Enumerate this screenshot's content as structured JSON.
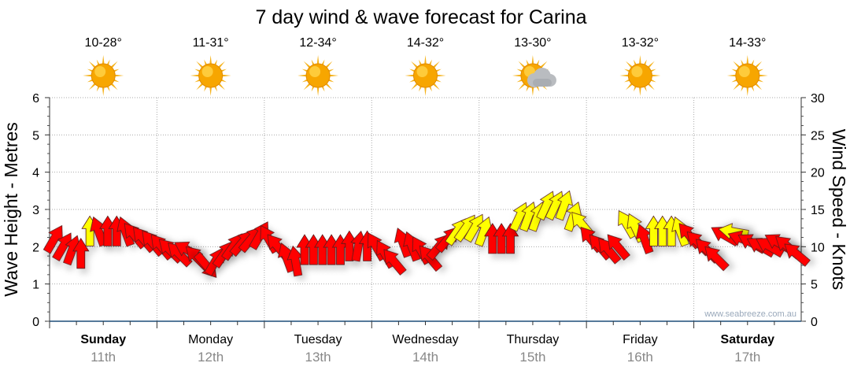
{
  "chart_data": {
    "type": "wind-arrow",
    "title": "7 day wind & wave forecast for Carina",
    "ylabel_left": "Wave Height - Metres",
    "ylabel_right": "Wind Speed - Knots",
    "ylim_left": [
      0,
      6
    ],
    "ylim_right": [
      0,
      30
    ],
    "yticks_left": [
      "0",
      "1",
      "2",
      "3",
      "4",
      "5",
      "6"
    ],
    "yticks_right": [
      "0",
      "5",
      "10",
      "15",
      "20",
      "25",
      "30"
    ],
    "grid": true,
    "watermark": "www.seabreeze.com.au",
    "days": [
      {
        "name": "Sunday",
        "date": "11th",
        "bold": true,
        "temp": "10-28°",
        "weather": "sunny"
      },
      {
        "name": "Monday",
        "date": "12th",
        "bold": false,
        "temp": "11-31°",
        "weather": "sunny"
      },
      {
        "name": "Tuesday",
        "date": "13th",
        "bold": false,
        "temp": "12-34°",
        "weather": "sunny"
      },
      {
        "name": "Wednesday",
        "date": "14th",
        "bold": false,
        "temp": "14-32°",
        "weather": "sunny"
      },
      {
        "name": "Thursday",
        "date": "15th",
        "bold": false,
        "temp": "13-30°",
        "weather": "partly-cloudy"
      },
      {
        "name": "Friday",
        "date": "16th",
        "bold": false,
        "temp": "13-32°",
        "weather": "sunny"
      },
      {
        "name": "Saturday",
        "date": "17th",
        "bold": true,
        "temp": "14-33°",
        "weather": "sunny"
      }
    ],
    "wind_units": "knots",
    "wind_points_per_day": 12,
    "wind": [
      [
        11,
        30,
        "r"
      ],
      [
        10,
        30,
        "r"
      ],
      [
        9.5,
        20,
        "r"
      ],
      [
        9,
        0,
        "r"
      ],
      [
        12,
        0,
        "y"
      ],
      [
        12,
        -20,
        "r"
      ],
      [
        12,
        0,
        "r"
      ],
      [
        12,
        0,
        "r"
      ],
      [
        12,
        -20,
        "r"
      ],
      [
        11.5,
        -40,
        "r"
      ],
      [
        11,
        -40,
        "r"
      ],
      [
        10.5,
        -40,
        "r"
      ],
      [
        10,
        -40,
        "r"
      ],
      [
        9.5,
        -45,
        "r"
      ],
      [
        9,
        -45,
        "r"
      ],
      [
        9.5,
        -60,
        "r"
      ],
      [
        8.5,
        -45,
        "r"
      ],
      [
        7.5,
        140,
        "r"
      ],
      [
        8,
        30,
        "r"
      ],
      [
        9,
        35,
        "r"
      ],
      [
        10,
        35,
        "r"
      ],
      [
        10.5,
        40,
        "r"
      ],
      [
        11,
        40,
        "r"
      ],
      [
        11.5,
        30,
        "r"
      ],
      [
        11,
        -30,
        "r"
      ],
      [
        10,
        -40,
        "r"
      ],
      [
        8.5,
        -20,
        "r"
      ],
      [
        8,
        -10,
        "r"
      ],
      [
        9.5,
        0,
        "r"
      ],
      [
        9.5,
        0,
        "r"
      ],
      [
        9.5,
        0,
        "r"
      ],
      [
        9.5,
        0,
        "r"
      ],
      [
        9.5,
        0,
        "r"
      ],
      [
        10,
        0,
        "r"
      ],
      [
        10,
        10,
        "r"
      ],
      [
        10,
        0,
        "r"
      ],
      [
        10,
        -30,
        "r"
      ],
      [
        9,
        -30,
        "r"
      ],
      [
        8,
        -40,
        "r"
      ],
      [
        10.5,
        -20,
        "r"
      ],
      [
        10,
        -20,
        "r"
      ],
      [
        9.5,
        -30,
        "r"
      ],
      [
        8.5,
        -40,
        "r"
      ],
      [
        10,
        40,
        "r"
      ],
      [
        11,
        40,
        "r"
      ],
      [
        12,
        35,
        "y"
      ],
      [
        12.5,
        35,
        "y"
      ],
      [
        12.5,
        30,
        "y"
      ],
      [
        12,
        20,
        "y"
      ],
      [
        11,
        0,
        "r"
      ],
      [
        11,
        0,
        "r"
      ],
      [
        11,
        0,
        "r"
      ],
      [
        14,
        25,
        "y"
      ],
      [
        14,
        20,
        "y"
      ],
      [
        14,
        20,
        "y"
      ],
      [
        15.5,
        25,
        "y"
      ],
      [
        15.5,
        25,
        "y"
      ],
      [
        15.5,
        20,
        "y"
      ],
      [
        14,
        20,
        "y"
      ],
      [
        13,
        -40,
        "y"
      ],
      [
        11,
        -40,
        "r"
      ],
      [
        10,
        -40,
        "r"
      ],
      [
        9.5,
        -40,
        "r"
      ],
      [
        10,
        -40,
        "r"
      ],
      [
        13,
        -30,
        "y"
      ],
      [
        12.5,
        -25,
        "y"
      ],
      [
        11,
        -20,
        "r"
      ],
      [
        12,
        0,
        "y"
      ],
      [
        12,
        0,
        "y"
      ],
      [
        12,
        0,
        "y"
      ],
      [
        12,
        -20,
        "y"
      ],
      [
        11.5,
        -40,
        "r"
      ],
      [
        10.5,
        -45,
        "r"
      ],
      [
        9.5,
        -45,
        "r"
      ],
      [
        8.5,
        -45,
        "r"
      ],
      [
        11.5,
        -60,
        "r"
      ],
      [
        12,
        -80,
        "y"
      ],
      [
        11,
        -70,
        "r"
      ],
      [
        10.5,
        -60,
        "r"
      ],
      [
        10,
        -60,
        "r"
      ],
      [
        10,
        -60,
        "r"
      ],
      [
        10.5,
        -60,
        "r"
      ],
      [
        10,
        -50,
        "r"
      ],
      [
        9,
        -50,
        "r"
      ]
    ],
    "colors": {
      "r": "#ff0000",
      "y": "#ffff00",
      "axis": "#1f4e79",
      "grid": "#aaaaaa",
      "date": "#888888"
    }
  }
}
